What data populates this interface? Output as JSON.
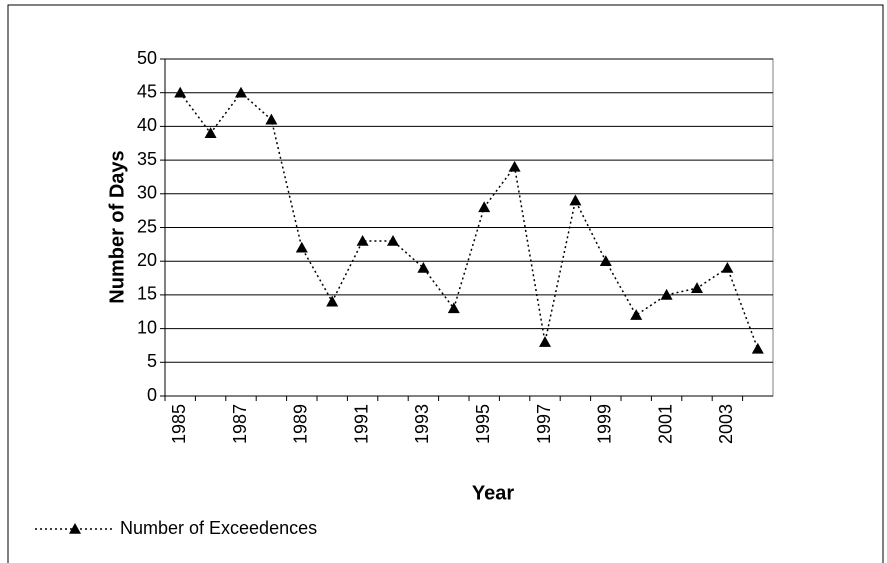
{
  "chart_data": {
    "type": "line",
    "x_label": "Year",
    "y_label": "Number of Days",
    "categories": [
      "1985",
      null,
      "1987",
      null,
      "1989",
      null,
      "1991",
      null,
      "1993",
      null,
      "1995",
      null,
      "1997",
      null,
      "1999",
      null,
      "2001",
      null,
      "2003",
      null
    ],
    "series": [
      {
        "name": "Number of Exceedences",
        "color": "#000000",
        "values": [
          45,
          39,
          45,
          41,
          22,
          14,
          23,
          23,
          19,
          13,
          28,
          34,
          8,
          29,
          20,
          12,
          15,
          16,
          19,
          7
        ]
      }
    ],
    "ylim": [
      0,
      50
    ],
    "yticks": [
      0,
      5,
      10,
      15,
      20,
      25,
      30,
      35,
      40,
      45,
      50
    ],
    "grid": true,
    "legend": "bottom-left",
    "marker": "triangle",
    "line_style": "dotted"
  }
}
